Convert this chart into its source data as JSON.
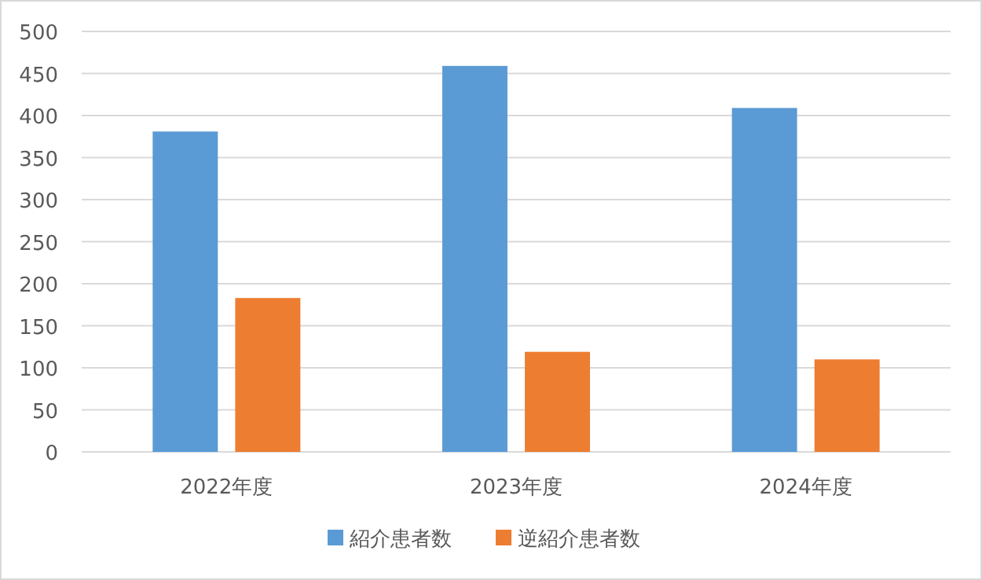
{
  "chart_data": {
    "type": "bar",
    "categories": [
      "2022年度",
      "2023年度",
      "2024年度"
    ],
    "series": [
      {
        "name": "紹介患者数",
        "color": "#5b9bd5",
        "values": [
          381,
          459,
          409
        ]
      },
      {
        "name": "逆紹介患者数",
        "color": "#ed7d31",
        "values": [
          183,
          119,
          110
        ]
      }
    ],
    "ylim": [
      0,
      500
    ],
    "yticks": [
      0,
      50,
      100,
      150,
      200,
      250,
      300,
      350,
      400,
      450,
      500
    ],
    "grid": "y",
    "legend": "bottom"
  }
}
